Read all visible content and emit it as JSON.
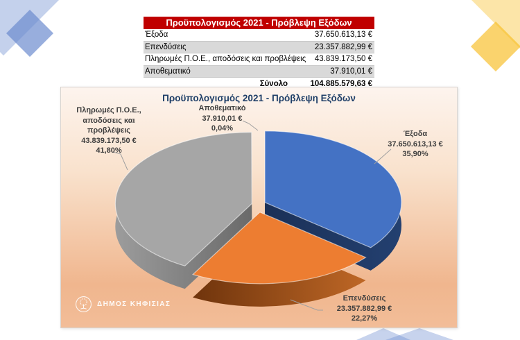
{
  "table": {
    "title": "Προϋπολογισμός 2021 - Πρόβλεψη Εξόδων",
    "header_bg": "#C00000",
    "rows": [
      {
        "label": "Έξοδα",
        "value": "37.650.613,13 €"
      },
      {
        "label": "Επενδύσεις",
        "value": "23.357.882,99 €"
      },
      {
        "label": "Πληρωμές Π.Ο.Ε., αποδόσεις και προβλέψεις",
        "value": "43.839.173,50 €"
      },
      {
        "label": "Αποθεματικό",
        "value": "37.910,01 €"
      }
    ],
    "total": {
      "label": "Σύνολο",
      "value": "104.885.579,63 €"
    }
  },
  "chart": {
    "logo_text": "ΔΗΜΟΣ ΚΗΦΙΣΙΑΣ"
  },
  "chart_data": {
    "type": "pie",
    "title": "Προϋπολογισμός 2021 - Πρόβλεψη Εξόδων",
    "style": "3d-exploded",
    "legend": "none",
    "labels": "outside: name, amount, percent",
    "currency": "€",
    "total_label": "Σύνολο",
    "total_value": 104885579.63,
    "background_gradient": [
      "#FDF4EE",
      "#F0B68E"
    ],
    "slices": [
      {
        "name": "Έξοδα",
        "value": 37650613.13,
        "amount_label": "37.650.613,13 €",
        "pct": 35.9,
        "pct_label": "35,90%",
        "color": "#4472C4",
        "side_left": "#1B3057",
        "side_right": "#234070"
      },
      {
        "name": "Επενδύσεις",
        "value": 23357882.99,
        "amount_label": "23.357.882,99 €",
        "pct": 22.27,
        "pct_label": "22,27%",
        "color": "#ED7D31",
        "side_left": "#6F340C",
        "side_right": "#BE6726"
      },
      {
        "name": "Πληρωμές Π.Ο.Ε., αποδόσεις και προβλέψεις",
        "value": 43839173.5,
        "amount_label": "43.839.173,50 €",
        "pct": 41.8,
        "pct_label": "41,80%",
        "color": "#A6A6A6",
        "side_left": "#9C9C9C",
        "side_right": "#6A6A6A"
      },
      {
        "name": "Αποθεματικό",
        "value": 37910.01,
        "amount_label": "37.910,01 €",
        "pct": 0.04,
        "pct_label": "0,04%",
        "color": "#FFC000",
        "side_left": "#7F6000",
        "side_right": "#7F6000"
      }
    ]
  }
}
